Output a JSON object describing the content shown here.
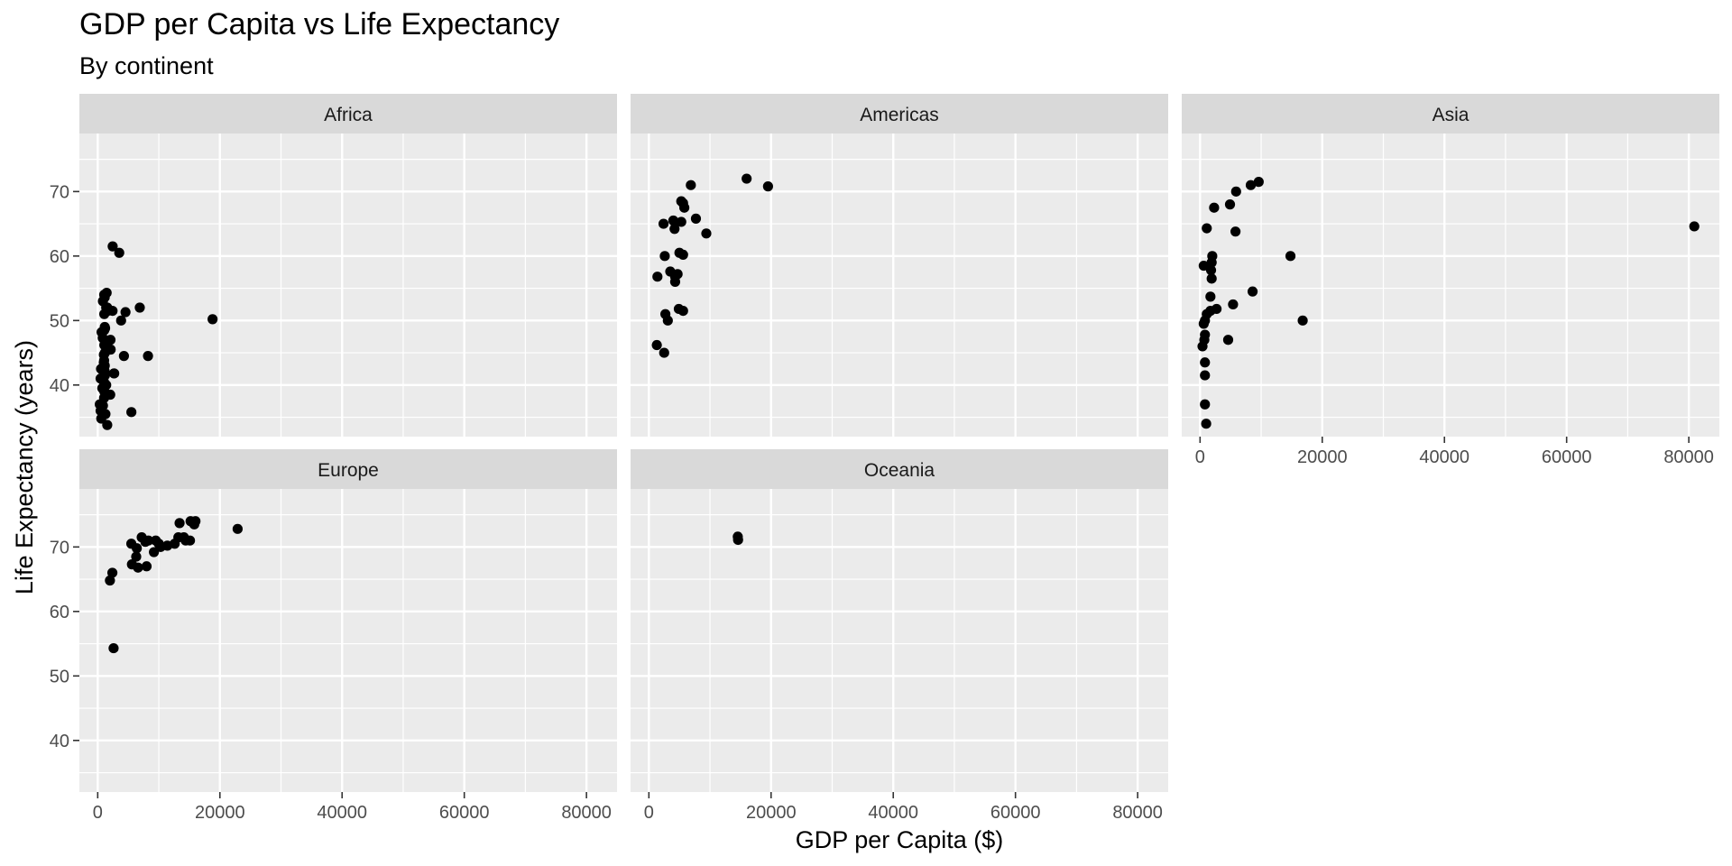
{
  "chart_data": {
    "type": "scatter",
    "facet": "continent",
    "title": "GDP per Capita vs Life Expectancy",
    "subtitle": "By continent",
    "xlabel": "GDP per Capita ($)",
    "ylabel": "Life Expectancy (years)",
    "xlim": [
      -3000,
      85000
    ],
    "ylim": [
      32,
      79
    ],
    "xticks": [
      0,
      20000,
      40000,
      60000,
      80000
    ],
    "xtick_labels": [
      "0",
      "20000",
      "40000",
      "60000",
      "80000"
    ],
    "yticks": [
      40,
      50,
      60,
      70
    ],
    "ytick_labels": [
      "40",
      "50",
      "60",
      "70"
    ],
    "grid": true,
    "panels": [
      {
        "name": "Africa",
        "x": [
          2449,
          3521,
          1063,
          851,
          543,
          339,
          1173,
          1072,
          1071,
          1179,
          1102,
          2126,
          1389,
          2670,
          1265,
          4293,
          469,
          2052,
          1419,
          3828,
          1043,
          1150,
          1391,
          2428,
          580,
          8232,
          752,
          470,
          1119,
          990,
          1520,
          1462,
          1561,
          1078,
          18800,
          2093,
          6886,
          1686,
          2700,
          4550,
          5511,
          632,
          818,
          1155,
          1147,
          1018,
          1082,
          1396,
          1049,
          1141,
          1007,
          860,
          1210,
          1560
        ],
        "y": [
          61.5,
          60.5,
          54.0,
          53.0,
          42.5,
          37.0,
          41.5,
          51.0,
          48.5,
          45.0,
          47.0,
          45.5,
          52.0,
          41.8,
          35.5,
          44.5,
          36.0,
          38.5,
          46.5,
          50.0,
          38.0,
          49.0,
          40.0,
          51.5,
          34.8,
          44.5,
          39.5,
          41.0,
          42.2,
          43.5,
          38.5,
          54.3,
          52.0,
          46.2,
          50.2,
          47.0,
          52.0,
          51.5,
          41.8,
          51.3,
          35.8,
          48.2,
          47.3,
          43.0,
          53.6,
          40.5,
          39.0,
          46.8,
          43.8,
          42.0,
          44.7,
          36.8,
          48.8,
          33.8
        ]
      },
      {
        "name": "Americas",
        "x": [
          16000,
          19500,
          6868,
          5300,
          5600,
          5800,
          7700,
          9400,
          4000,
          5300,
          2400,
          4200,
          4300,
          5000,
          5600,
          4700,
          2600,
          3500,
          4300,
          4300,
          1400,
          4900,
          5600,
          2700,
          3100,
          1300,
          2500
        ],
        "y": [
          72.0,
          70.8,
          71.0,
          68.5,
          68.2,
          67.5,
          65.8,
          63.5,
          65.5,
          65.3,
          65.0,
          64.2,
          65.2,
          60.5,
          60.2,
          57.2,
          60.0,
          57.6,
          56.0,
          56.8,
          56.8,
          51.8,
          51.5,
          51.0,
          50.0,
          46.2,
          45.0
        ]
      },
      {
        "name": "Asia",
        "x": [
          80894,
          9600,
          8300,
          5900,
          4900,
          2300,
          1100,
          5800,
          14800,
          2000,
          1900,
          1800,
          600,
          1900,
          1700,
          16800,
          8600,
          2700,
          5400,
          1700,
          1100,
          600,
          4600,
          800,
          700,
          400,
          800,
          800,
          800,
          1000,
          800
        ],
        "y": [
          64.6,
          71.5,
          71.0,
          70.0,
          68.0,
          67.5,
          64.3,
          63.8,
          60.0,
          60.0,
          59.0,
          57.8,
          58.5,
          56.5,
          53.7,
          50.0,
          54.5,
          51.8,
          52.5,
          51.5,
          51.0,
          49.5,
          47.0,
          47.8,
          47.0,
          46.0,
          43.5,
          41.5,
          37.0,
          34.0,
          50.0
        ]
      },
      {
        "name": "Europe",
        "x": [
          22900,
          15200,
          15800,
          16000,
          13400,
          14100,
          15100,
          7200,
          8300,
          9500,
          5500,
          6400,
          7800,
          10000,
          11400,
          12600,
          13200,
          14400,
          10300,
          9200,
          6300,
          5600,
          6600,
          8000,
          2400,
          2600,
          2000
        ],
        "y": [
          72.8,
          74.0,
          73.5,
          74.0,
          73.7,
          71.5,
          71.0,
          71.5,
          71.0,
          71.0,
          70.5,
          69.8,
          70.8,
          70.5,
          70.2,
          70.5,
          71.5,
          71.0,
          70.0,
          69.2,
          68.5,
          67.3,
          66.8,
          67.0,
          66.0,
          54.3,
          64.8
        ]
      },
      {
        "name": "Oceania",
        "x": [
          14550,
          14600
        ],
        "y": [
          71.6,
          71.1
        ]
      }
    ]
  }
}
